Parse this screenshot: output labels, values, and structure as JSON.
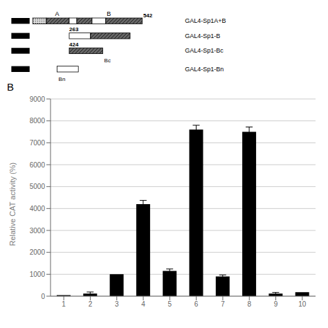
{
  "chart_data": {
    "type": "bar",
    "categories": [
      "1",
      "2",
      "3",
      "4",
      "5",
      "6",
      "7",
      "8",
      "9",
      "10"
    ],
    "values": [
      50,
      120,
      1000,
      4200,
      1150,
      7600,
      900,
      7500,
      120,
      180
    ],
    "errors": [
      0,
      70,
      0,
      170,
      90,
      200,
      70,
      220,
      50,
      0
    ],
    "color": "#000000",
    "ylabel": "Relative CAT activity (%)",
    "ylim": [
      0,
      9000
    ],
    "yticks": [
      0,
      1000,
      2000,
      3000,
      4000,
      5000,
      6000,
      7000,
      8000,
      9000
    ],
    "grid": true,
    "annotations": [
      "B",
      "A",
      "B",
      "542",
      "GAL4-Sp1A+B",
      "263",
      "GAL4-Sp1-B",
      "424",
      "Bc",
      "GAL4-Sp1-Bc",
      "Bn",
      "GAL4-Sp1-Bn"
    ]
  }
}
